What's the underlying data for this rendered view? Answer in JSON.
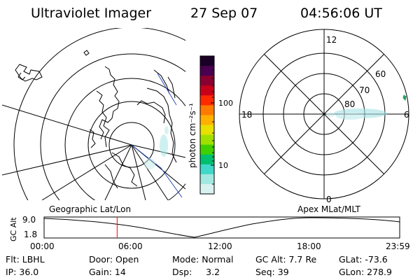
{
  "header": {
    "instrument": "Ultraviolet Imager",
    "date": "27 Sep 07",
    "time": "04:56:06 UT"
  },
  "left_panel": {
    "label": "Geographic Lat/Lon"
  },
  "right_panel": {
    "label": "Apex MLat/MLT",
    "mlt_labels": {
      "top": "12",
      "left": "18",
      "right": "6",
      "bottom": "0"
    },
    "lat_labels": [
      "60",
      "70",
      "80"
    ]
  },
  "colorbar": {
    "unit": "photon cm⁻²s⁻¹",
    "tick_100": "100",
    "tick_10": "10",
    "colors_top_to_bottom": [
      "#1a0026",
      "#4a0050",
      "#8a0030",
      "#c8001a",
      "#ff2a00",
      "#ff7a00",
      "#ffb000",
      "#e8e000",
      "#a0e000",
      "#40d000",
      "#00c070",
      "#40d8c8",
      "#a0e8e0",
      "#d8f2f0"
    ]
  },
  "altitude_plot": {
    "ylabel": "GC Alt",
    "ymax": "9.0",
    "ymin": "1.8",
    "x_ticks": [
      "00:00",
      "06:00",
      "12:00",
      "18:00",
      "23:59"
    ],
    "current_time_marker_hours": 4.93,
    "marker_color": "#ff0000"
  },
  "info": {
    "filter": "Flt: LBHL",
    "ip": "IP: 36.0",
    "door": "Door: Open",
    "gain": "Gain: 14",
    "mode": "Mode: Normal",
    "dsp": "Dsp:     3.2",
    "gc_alt": "GC Alt: 7.7 Re",
    "seq": "Seq: 39",
    "glat": "GLat: -73.6",
    "glon": "GLon: 278.9"
  }
}
